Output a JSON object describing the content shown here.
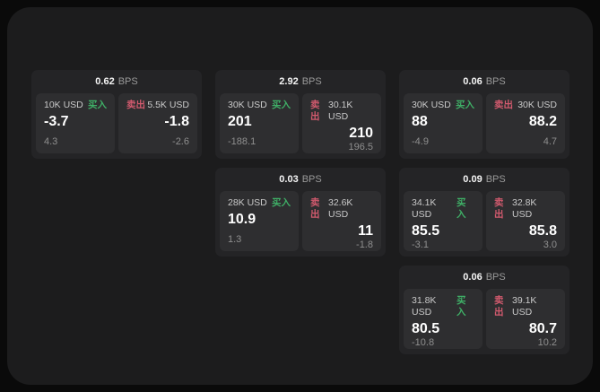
{
  "labels": {
    "bps_unit": "BPS",
    "buy": "买入",
    "sell": "卖出"
  },
  "colors": {
    "outer_background": "#0a0a0a",
    "panel_background": "#1c1c1d",
    "card_background": "#242426",
    "subcard_background": "#2e2e30",
    "buy_green": "#3fae66",
    "sell_red": "#d25a6e",
    "value_white": "#ffffff",
    "secondary_gray": "#8f8f8f"
  },
  "cards": [
    {
      "grid": {
        "row": 1,
        "col": 1
      },
      "bps": "0.62",
      "buy": {
        "amount": "10K USD",
        "value": "-3.7",
        "delta": "4.3"
      },
      "sell": {
        "amount": "5.5K USD",
        "value": "-1.8",
        "delta": "-2.6"
      }
    },
    {
      "grid": {
        "row": 1,
        "col": 2
      },
      "bps": "2.92",
      "buy": {
        "amount": "30K USD",
        "value": "201",
        "delta": "-188.1"
      },
      "sell": {
        "amount": "30.1K USD",
        "value": "210",
        "delta": "196.5"
      }
    },
    {
      "grid": {
        "row": 1,
        "col": 3
      },
      "bps": "0.06",
      "buy": {
        "amount": "30K USD",
        "value": "88",
        "delta": "-4.9"
      },
      "sell": {
        "amount": "30K USD",
        "value": "88.2",
        "delta": "4.7"
      }
    },
    {
      "grid": {
        "row": 2,
        "col": 2
      },
      "bps": "0.03",
      "buy": {
        "amount": "28K USD",
        "value": "10.9",
        "delta": "1.3"
      },
      "sell": {
        "amount": "32.6K USD",
        "value": "11",
        "delta": "-1.8"
      }
    },
    {
      "grid": {
        "row": 2,
        "col": 3
      },
      "bps": "0.09",
      "buy": {
        "amount": "34.1K USD",
        "value": "85.5",
        "delta": "-3.1"
      },
      "sell": {
        "amount": "32.8K USD",
        "value": "85.8",
        "delta": "3.0"
      }
    },
    {
      "grid": {
        "row": 3,
        "col": 3
      },
      "bps": "0.06",
      "buy": {
        "amount": "31.8K USD",
        "value": "80.5",
        "delta": "-10.8"
      },
      "sell": {
        "amount": "39.1K USD",
        "value": "80.7",
        "delta": "10.2"
      }
    }
  ]
}
